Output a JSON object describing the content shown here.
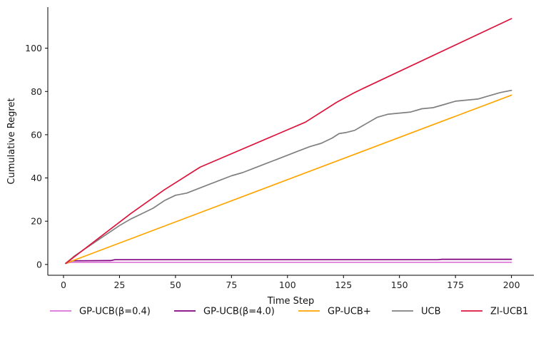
{
  "chart_data": {
    "type": "line",
    "title": "",
    "xlabel": "Time Step",
    "ylabel": "Cumulative Regret",
    "xlim": [
      -7,
      210
    ],
    "ylim": [
      -5,
      119
    ],
    "xticks": [
      0,
      25,
      50,
      75,
      100,
      125,
      150,
      175,
      200
    ],
    "yticks": [
      0,
      20,
      40,
      60,
      80,
      100
    ],
    "grid": false,
    "legend_position": "bottom",
    "series": [
      {
        "name": "GP-UCB(β=0.4)",
        "color": "#da70d6",
        "x": [
          1,
          3,
          200
        ],
        "y": [
          0.5,
          1.0,
          1.0
        ]
      },
      {
        "name": "GP-UCB(β=4.0)",
        "color": "#800080",
        "x": [
          1,
          4,
          21,
          23,
          60,
          100,
          150,
          167,
          169,
          200
        ],
        "y": [
          0.5,
          1.7,
          1.8,
          2.2,
          2.2,
          2.2,
          2.2,
          2.2,
          2.4,
          2.4
        ]
      },
      {
        "name": "GP-UCB+",
        "color": "#ffa500",
        "x": [
          1,
          200
        ],
        "y": [
          0.5,
          78.3
        ]
      },
      {
        "name": "UCB",
        "color": "#808080",
        "x": [
          1,
          5,
          10,
          15,
          20,
          25,
          30,
          35,
          40,
          45,
          50,
          55,
          60,
          65,
          70,
          75,
          80,
          85,
          90,
          95,
          100,
          105,
          110,
          115,
          120,
          123,
          126,
          130,
          135,
          140,
          145,
          150,
          155,
          160,
          165,
          170,
          175,
          180,
          185,
          190,
          195,
          200
        ],
        "y": [
          0.5,
          4.0,
          7.5,
          11.0,
          14.5,
          18.0,
          21.0,
          23.5,
          26.0,
          29.5,
          32.0,
          33.0,
          35.0,
          37.0,
          39.0,
          41.0,
          42.5,
          44.5,
          46.5,
          48.5,
          50.5,
          52.5,
          54.5,
          56.0,
          58.5,
          60.5,
          61.0,
          62.0,
          65.0,
          68.0,
          69.5,
          70.0,
          70.5,
          72.0,
          72.5,
          74.0,
          75.5,
          76.0,
          76.5,
          78.0,
          79.5,
          80.5
        ]
      },
      {
        "name": "ZI-UCB1",
        "color": "#dc143c",
        "x": [
          1,
          30,
          45,
          61,
          108,
          122,
          130,
          134,
          200
        ],
        "y": [
          0.5,
          23.5,
          34.5,
          45.0,
          65.8,
          75.0,
          79.5,
          81.5,
          113.7
        ]
      }
    ]
  }
}
